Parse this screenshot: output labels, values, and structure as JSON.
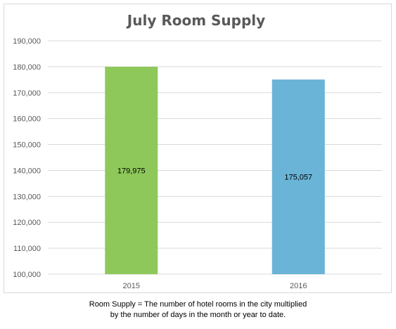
{
  "chart_data": {
    "type": "bar",
    "title": "July Room Supply",
    "categories": [
      "2015",
      "2016"
    ],
    "values": [
      179975,
      175057
    ],
    "data_labels": [
      "179,975",
      "175,057"
    ],
    "bar_colors": [
      "#8ec85a",
      "#6ab4d8"
    ],
    "ylim": [
      100000,
      190000
    ],
    "y_ticks": [
      100000,
      110000,
      120000,
      130000,
      140000,
      150000,
      160000,
      170000,
      180000,
      190000
    ],
    "y_tick_labels": [
      "100,000",
      "110,000",
      "120,000",
      "130,000",
      "140,000",
      "150,000",
      "160,000",
      "170,000",
      "180,000",
      "190,000"
    ],
    "grid": true,
    "legend": "none",
    "xlabel": "",
    "ylabel": ""
  },
  "footnote": {
    "line1": "Room Supply = The number of hotel rooms in the city multiplied",
    "line2": "by the number of days in the month or year to date."
  }
}
